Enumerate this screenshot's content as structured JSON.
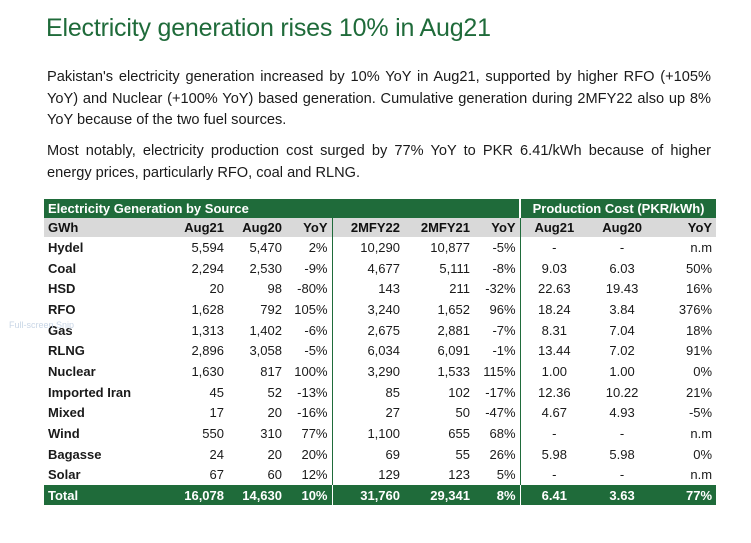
{
  "title": "Electricity generation rises 10% in Aug21",
  "paragraphs": [
    "Pakistan's electricity generation increased by 10% YoY in Aug21, supported by higher RFO (+105% YoY) and Nuclear (+100% YoY) based generation. Cumulative generation during 2MFY22 also up 8% YoY because of the two fuel sources.",
    "Most notably, electricity production cost surged by 77% YoY to PKR 6.41/kWh because of higher energy prices, particularly RFO, coal and RLNG."
  ],
  "table": {
    "group_left": "Electricity Generation by Source",
    "group_right": "Production Cost (PKR/kWh)",
    "columns": [
      "GWh",
      "Aug21",
      "Aug20",
      "YoY",
      "2MFY22",
      "2MFY21",
      "YoY",
      "Aug21",
      "Aug20",
      "YoY"
    ],
    "rows": [
      [
        "Hydel",
        "5,594",
        "5,470",
        "2%",
        "10,290",
        "10,877",
        "-5%",
        "-",
        "-",
        "n.m"
      ],
      [
        "Coal",
        "2,294",
        "2,530",
        "-9%",
        "4,677",
        "5,111",
        "-8%",
        "9.03",
        "6.03",
        "50%"
      ],
      [
        "HSD",
        "20",
        "98",
        "-80%",
        "143",
        "211",
        "-32%",
        "22.63",
        "19.43",
        "16%"
      ],
      [
        "RFO",
        "1,628",
        "792",
        "105%",
        "3,240",
        "1,652",
        "96%",
        "18.24",
        "3.84",
        "376%"
      ],
      [
        "Gas",
        "1,313",
        "1,402",
        "-6%",
        "2,675",
        "2,881",
        "-7%",
        "8.31",
        "7.04",
        "18%"
      ],
      [
        "RLNG",
        "2,896",
        "3,058",
        "-5%",
        "6,034",
        "6,091",
        "-1%",
        "13.44",
        "7.02",
        "91%"
      ],
      [
        "Nuclear",
        "1,630",
        "817",
        "100%",
        "3,290",
        "1,533",
        "115%",
        "1.00",
        "1.00",
        "0%"
      ],
      [
        "Imported Iran",
        "45",
        "52",
        "-13%",
        "85",
        "102",
        "-17%",
        "12.36",
        "10.22",
        "21%"
      ],
      [
        "Mixed",
        "17",
        "20",
        "-16%",
        "27",
        "50",
        "-47%",
        "4.67",
        "4.93",
        "-5%"
      ],
      [
        "Wind",
        "550",
        "310",
        "77%",
        "1,100",
        "655",
        "68%",
        "-",
        "-",
        "n.m"
      ],
      [
        "Bagasse",
        "24",
        "20",
        "20%",
        "69",
        "55",
        "26%",
        "5.98",
        "5.98",
        "0%"
      ],
      [
        "Solar",
        "67",
        "60",
        "12%",
        "129",
        "123",
        "5%",
        "-",
        "-",
        "n.m"
      ]
    ],
    "total": [
      "Total",
      "16,078",
      "14,630",
      "10%",
      "31,760",
      "29,341",
      "8%",
      "6.41",
      "3.63",
      "77%"
    ]
  },
  "overlay_text": "Full-screen Snip",
  "colors": {
    "brand_green": "#1f6b3a",
    "header_gray": "#d9d9d9"
  }
}
